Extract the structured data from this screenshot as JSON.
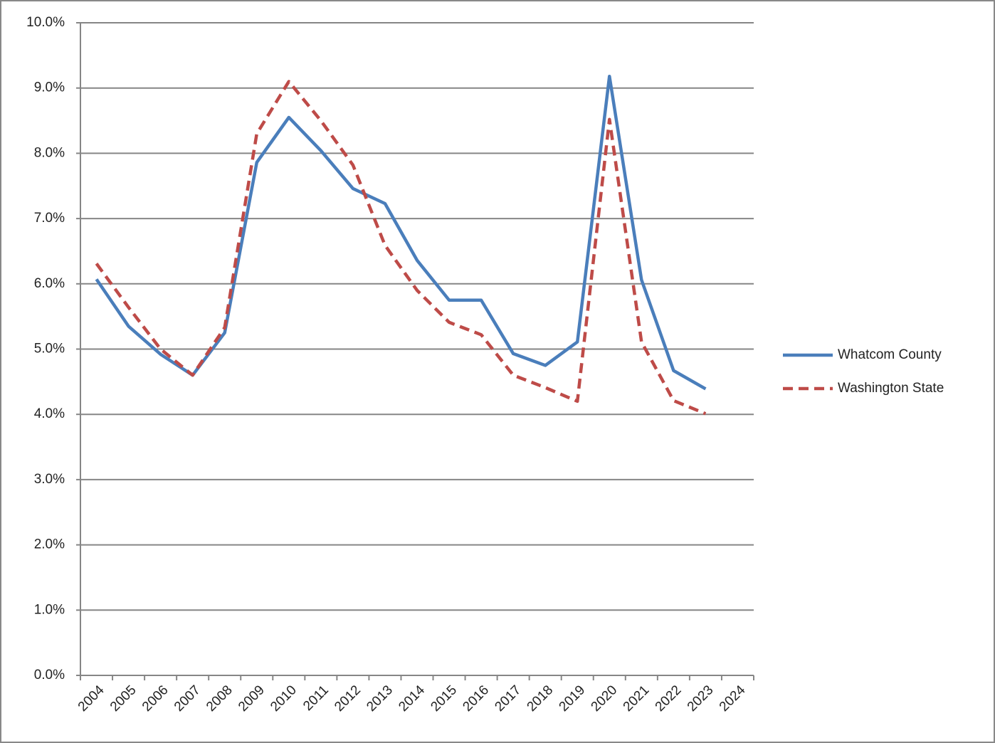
{
  "chart_data": {
    "type": "line",
    "categories": [
      "2004",
      "2005",
      "2006",
      "2007",
      "2008",
      "2009",
      "2010",
      "2011",
      "2012",
      "2013",
      "2014",
      "2015",
      "2016",
      "2017",
      "2018",
      "2019",
      "2020",
      "2021",
      "2022",
      "2023",
      "2024"
    ],
    "series": [
      {
        "name": "Whatcom County",
        "color": "#4a7ebb",
        "line_style": "solid",
        "values": [
          6.07,
          5.35,
          4.92,
          4.6,
          5.25,
          7.86,
          8.55,
          8.04,
          7.46,
          7.23,
          6.36,
          5.75,
          5.75,
          4.93,
          4.75,
          5.11,
          9.18,
          6.06,
          4.67,
          4.39,
          null
        ]
      },
      {
        "name": "Washington State",
        "color": "#be4b48",
        "line_style": "dashed",
        "values": [
          6.31,
          5.64,
          5.0,
          4.6,
          5.33,
          8.3,
          9.1,
          8.5,
          7.82,
          6.59,
          5.9,
          5.41,
          5.22,
          4.6,
          4.41,
          4.2,
          8.52,
          5.11,
          4.21,
          4.01,
          null
        ]
      }
    ],
    "ylim": [
      0,
      10
    ],
    "yticks": [
      {
        "value": 0,
        "label": "0.0%"
      },
      {
        "value": 1,
        "label": "1.0%"
      },
      {
        "value": 2,
        "label": "2.0%"
      },
      {
        "value": 3,
        "label": "3.0%"
      },
      {
        "value": 4,
        "label": "4.0%"
      },
      {
        "value": 5,
        "label": "5.0%"
      },
      {
        "value": 6,
        "label": "6.0%"
      },
      {
        "value": 7,
        "label": "7.0%"
      },
      {
        "value": 8,
        "label": "8.0%"
      },
      {
        "value": 9,
        "label": "9.0%"
      },
      {
        "value": 10,
        "label": "10.0%"
      }
    ],
    "grid": true,
    "legend": "right"
  }
}
